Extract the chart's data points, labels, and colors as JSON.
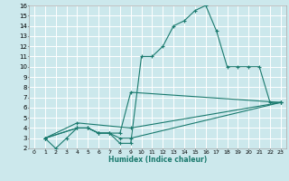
{
  "title": "",
  "xlabel": "Humidex (Indice chaleur)",
  "xlim": [
    -0.5,
    23.5
  ],
  "ylim": [
    2,
    16
  ],
  "xticks": [
    0,
    1,
    2,
    3,
    4,
    5,
    6,
    7,
    8,
    9,
    10,
    11,
    12,
    13,
    14,
    15,
    16,
    17,
    18,
    19,
    20,
    21,
    22,
    23
  ],
  "yticks": [
    2,
    3,
    4,
    5,
    6,
    7,
    8,
    9,
    10,
    11,
    12,
    13,
    14,
    15,
    16
  ],
  "bg_color": "#cce8ec",
  "grid_color": "#ffffff",
  "line_color": "#1a7a6e",
  "marker": "+",
  "lines": [
    [
      [
        1,
        3
      ],
      [
        2,
        2
      ],
      [
        3,
        3
      ],
      [
        4,
        4
      ],
      [
        5,
        4
      ],
      [
        6,
        3.5
      ],
      [
        7,
        3.5
      ],
      [
        8,
        2.5
      ],
      [
        9,
        2.5
      ],
      [
        10,
        11
      ],
      [
        11,
        11
      ],
      [
        12,
        12
      ],
      [
        13,
        14
      ],
      [
        14,
        14.5
      ],
      [
        15,
        15.5
      ],
      [
        16,
        16
      ],
      [
        17,
        13.5
      ],
      [
        18,
        10
      ],
      [
        19,
        10
      ],
      [
        20,
        10
      ],
      [
        21,
        10
      ],
      [
        22,
        6.5
      ],
      [
        23,
        6.5
      ]
    ],
    [
      [
        1,
        3
      ],
      [
        4,
        4
      ],
      [
        5,
        4
      ],
      [
        6,
        3.5
      ],
      [
        7,
        3.5
      ],
      [
        8,
        3
      ],
      [
        9,
        3
      ],
      [
        23,
        6.5
      ]
    ],
    [
      [
        1,
        3
      ],
      [
        4,
        4
      ],
      [
        5,
        4
      ],
      [
        6,
        3.5
      ],
      [
        7,
        3.5
      ],
      [
        8,
        3.5
      ],
      [
        9,
        7.5
      ],
      [
        23,
        6.5
      ]
    ],
    [
      [
        1,
        3
      ],
      [
        4,
        4.5
      ],
      [
        9,
        4
      ],
      [
        23,
        6.5
      ]
    ]
  ]
}
